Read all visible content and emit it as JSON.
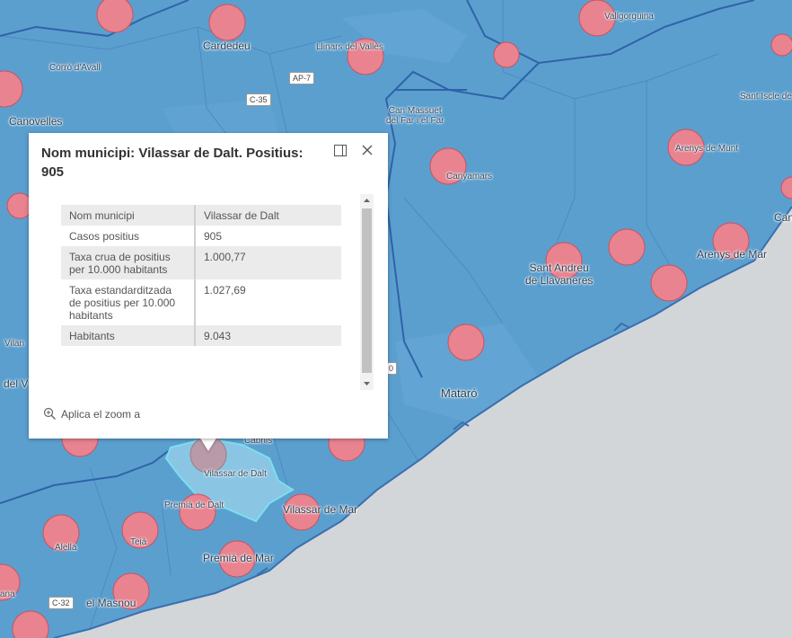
{
  "colors": {
    "sea": "#d3d6d8",
    "land": "#5b9fcf",
    "border": "#3a6fb0",
    "marker_fill": "#e8838f",
    "marker_stroke": "#c9535f",
    "selected": "#7de3f0"
  },
  "places": [
    {
      "label": "Cardedeu"
    },
    {
      "label": "Llinars del Vallès"
    },
    {
      "label": "Vallgorguina"
    },
    {
      "label": "Corró d'Avall"
    },
    {
      "label": "Canovelles"
    },
    {
      "label": "Can Massuet\ndel Far i el Far"
    },
    {
      "label": "Sant Iscle de"
    },
    {
      "label": "Arenys de Munt"
    },
    {
      "label": "Canyamars"
    },
    {
      "label": "Sant Andreu\nde Llavaneres"
    },
    {
      "label": "Arenys de Mar"
    },
    {
      "label": "Can"
    },
    {
      "label": "Mataró"
    },
    {
      "label": "Vilan"
    },
    {
      "label": "del V"
    },
    {
      "label": "Cabrils"
    },
    {
      "label": "Vilassar de Dalt"
    },
    {
      "label": "Premià de Dalt"
    },
    {
      "label": "Vilassar de Mar"
    },
    {
      "label": "Alella"
    },
    {
      "label": "Teià"
    },
    {
      "label": "Premià de Mar"
    },
    {
      "label": "el Masnou"
    },
    {
      "label": "ana"
    }
  ],
  "road_shields": [
    "AP-7",
    "C-35",
    "C-32",
    "0"
  ],
  "popup": {
    "title": "Nom municipi: Vilassar de Dalt. Positius: 905",
    "rows": [
      {
        "key": "Nom municipi",
        "value": "Vilassar de Dalt"
      },
      {
        "key": "Casos positius",
        "value": "905"
      },
      {
        "key": "Taxa crua de positius per 10.000 habitants",
        "value": "1.000,77"
      },
      {
        "key": "Taxa estandarditzada de positius per 10.000 habitants",
        "value": "1.027,69"
      },
      {
        "key": "Habitants",
        "value": "9.043"
      }
    ],
    "zoom_label": "Aplica el zoom a",
    "dock_icon": "dock-icon",
    "close_icon": "close-icon"
  }
}
